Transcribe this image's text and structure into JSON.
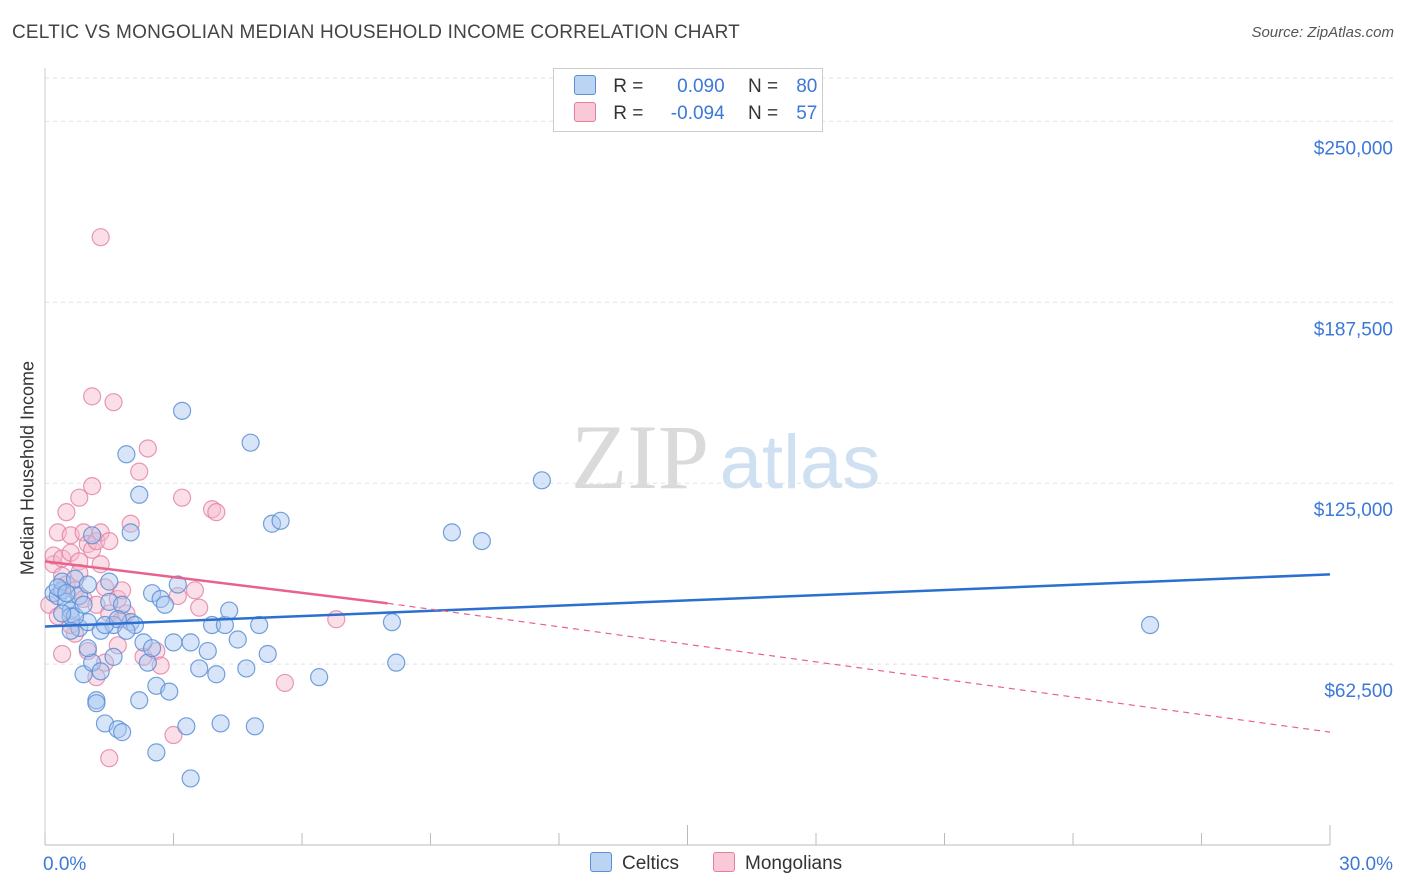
{
  "title": "CELTIC VS MONGOLIAN MEDIAN HOUSEHOLD INCOME CORRELATION CHART",
  "source": "Source: ZipAtlas.com",
  "watermark": {
    "zip": "ZIP",
    "atlas": "atlas"
  },
  "legend": {
    "r_label": "R =",
    "n_label": "N =",
    "series": [
      {
        "name": "Celtics",
        "r": "0.090",
        "n": "80"
      },
      {
        "name": "Mongolians",
        "r": "-0.094",
        "n": "57"
      }
    ]
  },
  "colors": {
    "celtics_fill": "#a8c6f0",
    "celtics_stroke": "#5b8fd6",
    "celtics_line": "#2b6fd0",
    "mongolians_fill": "#f6b8cc",
    "mongolians_stroke": "#e27fa0",
    "mongolians_line": "#e8628e",
    "tick_label": "#3b78d8",
    "grid": "#e2e2e2"
  },
  "chart_data": {
    "type": "scatter",
    "title": "CELTIC VS MONGOLIAN MEDIAN HOUSEHOLD INCOME CORRELATION CHART",
    "xlabel": "",
    "ylabel": "Median Household Income",
    "xlim": [
      0,
      30
    ],
    "ylim": [
      0,
      265000
    ],
    "x_tick_labels": [
      "0.0%",
      "30.0%"
    ],
    "y_ticks": [
      62500,
      125000,
      187500,
      250000
    ],
    "y_tick_labels": [
      "$62,500",
      "$125,000",
      "$187,500",
      "$250,000"
    ],
    "grid": true,
    "series": [
      {
        "name": "Celtics",
        "r": 0.09,
        "n": 80,
        "trend": {
          "x": [
            0,
            30
          ],
          "y": [
            75500,
            93500
          ],
          "dashed_extension": false
        },
        "points": [
          [
            0.2,
            87000
          ],
          [
            0.3,
            86000
          ],
          [
            0.4,
            88000
          ],
          [
            0.4,
            91000
          ],
          [
            0.5,
            84000
          ],
          [
            0.6,
            81000
          ],
          [
            0.6,
            79000
          ],
          [
            0.7,
            92000
          ],
          [
            0.8,
            75000
          ],
          [
            0.8,
            86000
          ],
          [
            0.9,
            59000
          ],
          [
            1.0,
            77000
          ],
          [
            1.0,
            90000
          ],
          [
            1.1,
            63000
          ],
          [
            1.1,
            107000
          ],
          [
            1.2,
            50000
          ],
          [
            1.2,
            49000
          ],
          [
            1.3,
            60000
          ],
          [
            1.3,
            74000
          ],
          [
            1.4,
            42000
          ],
          [
            1.5,
            91000
          ],
          [
            1.5,
            84000
          ],
          [
            1.6,
            76000
          ],
          [
            1.6,
            65000
          ],
          [
            1.7,
            40000
          ],
          [
            1.8,
            83000
          ],
          [
            1.8,
            39000
          ],
          [
            1.9,
            135000
          ],
          [
            2.0,
            77000
          ],
          [
            2.0,
            108000
          ],
          [
            2.1,
            76000
          ],
          [
            2.2,
            121000
          ],
          [
            2.2,
            50000
          ],
          [
            2.3,
            70000
          ],
          [
            2.4,
            63000
          ],
          [
            2.5,
            87000
          ],
          [
            2.6,
            55000
          ],
          [
            2.6,
            32000
          ],
          [
            2.7,
            85000
          ],
          [
            2.8,
            83000
          ],
          [
            2.9,
            53000
          ],
          [
            3.0,
            70000
          ],
          [
            3.1,
            90000
          ],
          [
            3.2,
            150000
          ],
          [
            3.3,
            41000
          ],
          [
            3.4,
            70000
          ],
          [
            3.4,
            23000
          ],
          [
            3.6,
            61000
          ],
          [
            3.8,
            67000
          ],
          [
            3.9,
            76000
          ],
          [
            4.0,
            59000
          ],
          [
            4.1,
            42000
          ],
          [
            4.2,
            76000
          ],
          [
            4.3,
            81000
          ],
          [
            4.5,
            71000
          ],
          [
            4.7,
            61000
          ],
          [
            4.8,
            139000
          ],
          [
            4.9,
            41000
          ],
          [
            5.0,
            76000
          ],
          [
            5.2,
            66000
          ],
          [
            5.3,
            111000
          ],
          [
            5.5,
            112000
          ],
          [
            6.4,
            58000
          ],
          [
            8.1,
            77000
          ],
          [
            8.2,
            63000
          ],
          [
            9.5,
            108000
          ],
          [
            10.2,
            105000
          ],
          [
            11.6,
            126000
          ],
          [
            25.8,
            76000
          ],
          [
            0.3,
            89000
          ],
          [
            0.5,
            87000
          ],
          [
            0.7,
            79000
          ],
          [
            0.9,
            83000
          ],
          [
            1.4,
            76000
          ],
          [
            1.7,
            78000
          ],
          [
            2.5,
            68000
          ],
          [
            1.0,
            68000
          ],
          [
            0.6,
            74000
          ],
          [
            1.9,
            74000
          ],
          [
            0.4,
            80000
          ]
        ]
      },
      {
        "name": "Mongolians",
        "r": -0.094,
        "n": 57,
        "trend": {
          "x": [
            0,
            8
          ],
          "y": [
            98000,
            83500
          ],
          "dashed_x": [
            8,
            30
          ],
          "dashed_y": [
            83500,
            39000
          ]
        },
        "points": [
          [
            0.1,
            83000
          ],
          [
            0.2,
            97000
          ],
          [
            0.2,
            100000
          ],
          [
            0.3,
            108000
          ],
          [
            0.3,
            79000
          ],
          [
            0.4,
            93000
          ],
          [
            0.4,
            99000
          ],
          [
            0.5,
            115000
          ],
          [
            0.5,
            90000
          ],
          [
            0.6,
            107000
          ],
          [
            0.6,
            101000
          ],
          [
            0.7,
            88000
          ],
          [
            0.7,
            73000
          ],
          [
            0.8,
            120000
          ],
          [
            0.8,
            98000
          ],
          [
            0.9,
            108000
          ],
          [
            0.9,
            85000
          ],
          [
            1.0,
            67000
          ],
          [
            1.0,
            104000
          ],
          [
            1.1,
            124000
          ],
          [
            1.1,
            102000
          ],
          [
            1.2,
            83000
          ],
          [
            1.2,
            105000
          ],
          [
            1.3,
            108000
          ],
          [
            1.3,
            97000
          ],
          [
            1.4,
            63000
          ],
          [
            1.4,
            89000
          ],
          [
            1.5,
            105000
          ],
          [
            1.5,
            80000
          ],
          [
            1.6,
            153000
          ],
          [
            1.7,
            85000
          ],
          [
            1.7,
            69000
          ],
          [
            1.8,
            78000
          ],
          [
            1.9,
            80000
          ],
          [
            2.0,
            111000
          ],
          [
            2.2,
            129000
          ],
          [
            2.3,
            65000
          ],
          [
            2.4,
            137000
          ],
          [
            2.6,
            67000
          ],
          [
            3.0,
            38000
          ],
          [
            3.2,
            120000
          ],
          [
            3.5,
            88000
          ],
          [
            3.6,
            82000
          ],
          [
            3.9,
            116000
          ],
          [
            4.0,
            115000
          ],
          [
            5.6,
            56000
          ],
          [
            6.8,
            78000
          ],
          [
            1.3,
            210000
          ],
          [
            1.1,
            155000
          ],
          [
            0.4,
            66000
          ],
          [
            0.6,
            76000
          ],
          [
            0.8,
            94000
          ],
          [
            1.5,
            30000
          ],
          [
            1.8,
            88000
          ],
          [
            2.7,
            62000
          ],
          [
            3.1,
            86000
          ],
          [
            1.2,
            58000
          ]
        ]
      }
    ]
  }
}
